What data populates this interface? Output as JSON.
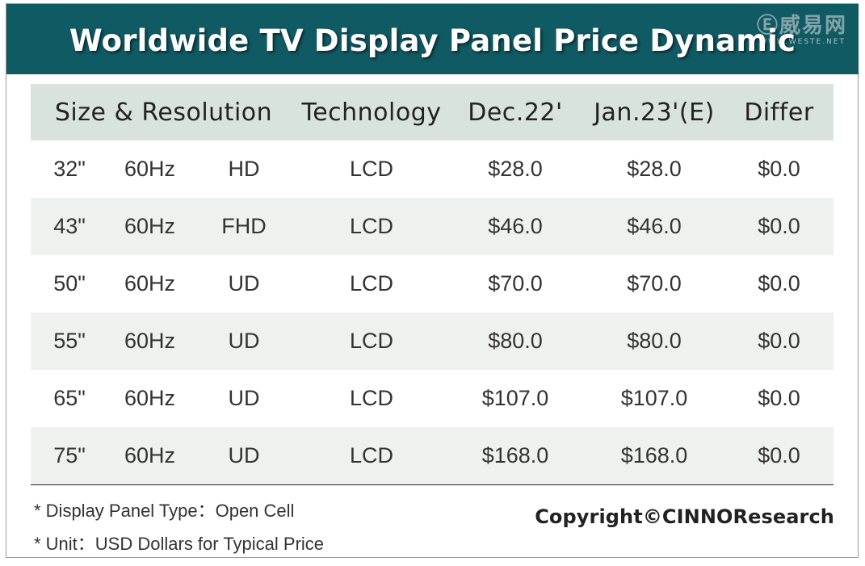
{
  "title": "Worldwide TV Display Panel Price Dynamic",
  "watermark": {
    "logo": "Ⓔ威易网",
    "sub": "WWW.WESTE.NET"
  },
  "chart_data": {
    "type": "table",
    "title": "Worldwide TV Display Panel Price Dynamic",
    "columns": [
      "Size & Resolution",
      "Technology",
      "Dec.22'",
      "Jan.23'(E)",
      "Differ"
    ],
    "rows": [
      {
        "size": "32\"",
        "refresh": "60Hz",
        "resolution": "HD",
        "technology": "LCD",
        "dec22": "$28.0",
        "jan23": "$28.0",
        "differ": "$0.0"
      },
      {
        "size": "43\"",
        "refresh": "60Hz",
        "resolution": "FHD",
        "technology": "LCD",
        "dec22": "$46.0",
        "jan23": "$46.0",
        "differ": "$0.0"
      },
      {
        "size": "50\"",
        "refresh": "60Hz",
        "resolution": "UD",
        "technology": "LCD",
        "dec22": "$70.0",
        "jan23": "$70.0",
        "differ": "$0.0"
      },
      {
        "size": "55\"",
        "refresh": "60Hz",
        "resolution": "UD",
        "technology": "LCD",
        "dec22": "$80.0",
        "jan23": "$80.0",
        "differ": "$0.0"
      },
      {
        "size": "65\"",
        "refresh": "60Hz",
        "resolution": "UD",
        "technology": "LCD",
        "dec22": "$107.0",
        "jan23": "$107.0",
        "differ": "$0.0"
      },
      {
        "size": "75\"",
        "refresh": "60Hz",
        "resolution": "UD",
        "technology": "LCD",
        "dec22": "$168.0",
        "jan23": "$168.0",
        "differ": "$0.0"
      }
    ],
    "notes": [
      "* Display Panel Type：Open Cell",
      "* Unit：USD Dollars for Typical Price"
    ]
  },
  "copyright": "Copyright©CINNOResearch",
  "colors": {
    "header_bg": "#105a64",
    "th_bg": "#d9e3dd",
    "stripe": "#edf2ef"
  }
}
